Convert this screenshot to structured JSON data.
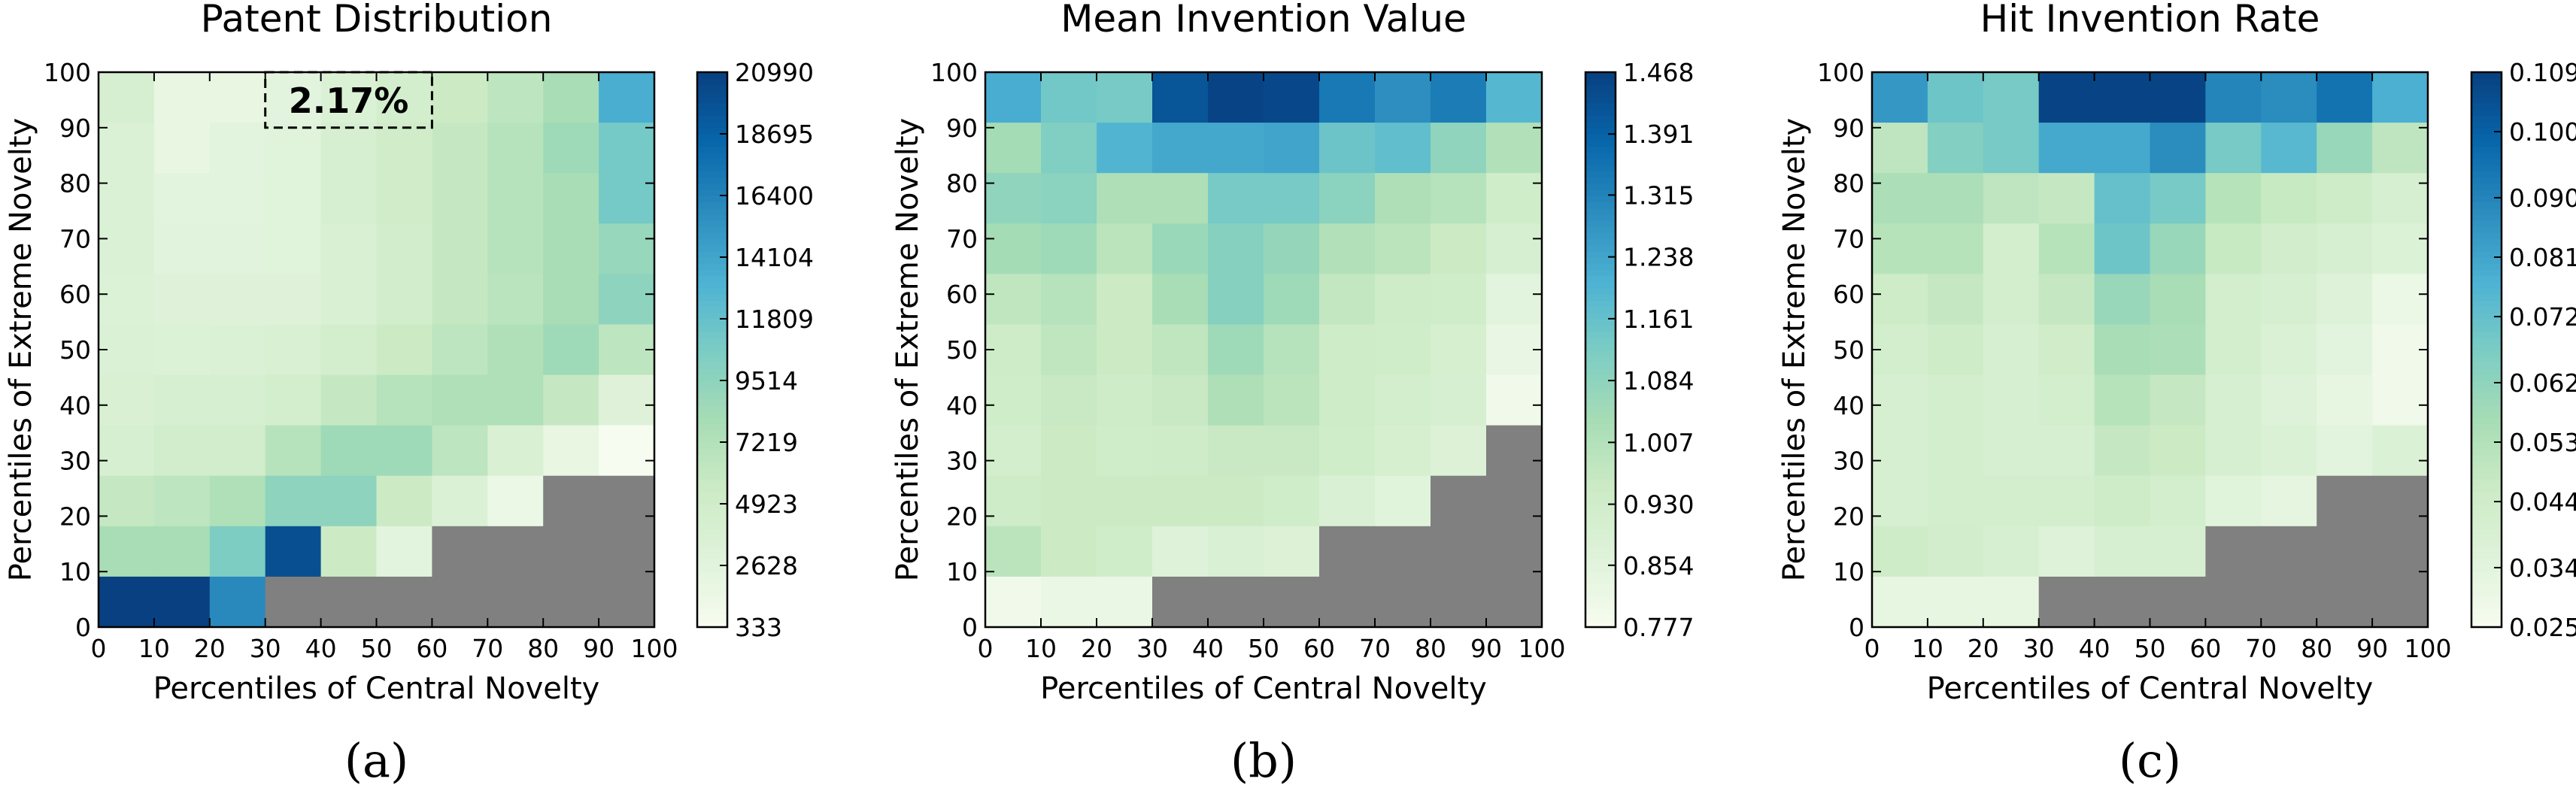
{
  "chart_data": [
    {
      "type": "heatmap",
      "caption": "(a)",
      "title": "Patent Distribution",
      "xlabel": "Percentiles of Central Novelty",
      "ylabel": "Percentiles of Extreme Novelty",
      "xlim": [
        0,
        100
      ],
      "ylim": [
        0,
        100
      ],
      "x_ticks": [
        "0",
        "10",
        "20",
        "30",
        "40",
        "50",
        "60",
        "70",
        "80",
        "90",
        "100"
      ],
      "y_ticks": [
        "0",
        "10",
        "20",
        "30",
        "40",
        "50",
        "60",
        "70",
        "80",
        "90",
        "100"
      ],
      "colorbar": {
        "min": 333,
        "max": 20990,
        "tick_values": [
          333,
          2628,
          4923,
          7219,
          9514,
          11809,
          14104,
          16400,
          18695,
          20990
        ],
        "tick_labels": [
          "333",
          "2628",
          "4923",
          "7219",
          "9514",
          "11809",
          "14104",
          "16400",
          "18695",
          "20990"
        ]
      },
      "missing_color": "#808080",
      "annotation": {
        "text": "2.17%",
        "box": {
          "x0": 30,
          "x1": 60,
          "y0": 90,
          "y1": 100
        }
      },
      "rows_top_to_bottom": [
        [
          4000,
          2000,
          2000,
          2500,
          3500,
          4500,
          5500,
          6500,
          8000,
          13500
        ],
        [
          3500,
          2000,
          2500,
          2800,
          4000,
          5000,
          6000,
          7000,
          8500,
          11000
        ],
        [
          3500,
          2500,
          2600,
          2800,
          4000,
          5000,
          6000,
          7000,
          8000,
          11000
        ],
        [
          3500,
          2700,
          2700,
          2800,
          3800,
          4700,
          6000,
          7000,
          8000,
          9000
        ],
        [
          3300,
          3000,
          3000,
          3000,
          3800,
          4700,
          6000,
          6800,
          8000,
          9500
        ],
        [
          3500,
          3300,
          3500,
          3800,
          4500,
          5500,
          6500,
          7500,
          8500,
          6500
        ],
        [
          3800,
          4000,
          4200,
          4500,
          6000,
          7000,
          7500,
          7500,
          6000,
          3000
        ],
        [
          4200,
          4800,
          4800,
          7000,
          8500,
          8500,
          6500,
          3800,
          2000,
          333
        ],
        [
          6000,
          6500,
          7500,
          9500,
          9500,
          5500,
          3500,
          1500,
          null,
          null
        ],
        [
          8000,
          8000,
          10500,
          20000,
          5500,
          2500,
          null,
          null,
          null,
          null
        ],
        [
          20990,
          20990,
          16000,
          null,
          null,
          null,
          null,
          null,
          null,
          null
        ]
      ]
    },
    {
      "type": "heatmap",
      "caption": "(b)",
      "title": "Mean Invention Value",
      "xlabel": "Percentiles of Central Novelty",
      "ylabel": "Percentiles of Extreme Novelty",
      "xlim": [
        0,
        100
      ],
      "ylim": [
        0,
        100
      ],
      "x_ticks": [
        "0",
        "10",
        "20",
        "30",
        "40",
        "50",
        "60",
        "70",
        "80",
        "90",
        "100"
      ],
      "y_ticks": [
        "0",
        "10",
        "20",
        "30",
        "40",
        "50",
        "60",
        "70",
        "80",
        "90",
        "100"
      ],
      "colorbar": {
        "min": 0.777,
        "max": 1.468,
        "tick_values": [
          0.777,
          0.854,
          0.93,
          1.007,
          1.084,
          1.161,
          1.238,
          1.315,
          1.391,
          1.468
        ],
        "tick_labels": [
          "0.777",
          "0.854",
          "0.930",
          "1.007",
          "1.084",
          "1.161",
          "1.238",
          "1.315",
          "1.391",
          "1.468"
        ]
      },
      "missing_color": "#808080",
      "rows_top_to_bottom": [
        [
          1.22,
          1.14,
          1.13,
          1.42,
          1.46,
          1.45,
          1.34,
          1.29,
          1.33,
          1.19
        ],
        [
          1.04,
          1.11,
          1.2,
          1.23,
          1.23,
          1.24,
          1.15,
          1.17,
          1.08,
          1.01
        ],
        [
          1.08,
          1.09,
          1.02,
          1.02,
          1.13,
          1.13,
          1.09,
          1.02,
          1.0,
          0.93
        ],
        [
          1.04,
          1.05,
          0.99,
          1.06,
          1.1,
          1.07,
          1.01,
          0.99,
          0.95,
          0.9
        ],
        [
          0.98,
          1.0,
          0.95,
          1.03,
          1.1,
          1.05,
          0.97,
          0.94,
          0.93,
          0.85
        ],
        [
          0.94,
          0.98,
          0.95,
          0.98,
          1.05,
          1.0,
          0.94,
          0.93,
          0.91,
          0.83
        ],
        [
          0.93,
          0.96,
          0.94,
          0.96,
          1.02,
          0.99,
          0.94,
          0.92,
          0.9,
          0.8
        ],
        [
          0.92,
          0.95,
          0.93,
          0.94,
          0.96,
          0.96,
          0.93,
          0.91,
          0.88,
          null
        ],
        [
          0.94,
          0.95,
          0.95,
          0.95,
          0.95,
          0.93,
          0.89,
          0.86,
          null,
          null
        ],
        [
          0.99,
          0.95,
          0.93,
          0.87,
          0.89,
          0.88,
          null,
          null,
          null,
          null
        ],
        [
          0.8,
          0.82,
          0.82,
          null,
          null,
          null,
          null,
          null,
          null,
          null
        ]
      ]
    },
    {
      "type": "heatmap",
      "caption": "(c)",
      "title": "Hit Invention Rate",
      "xlabel": "Percentiles of Central Novelty",
      "ylabel": "Percentiles of Extreme Novelty",
      "xlim": [
        0,
        100
      ],
      "ylim": [
        0,
        100
      ],
      "x_ticks": [
        "0",
        "10",
        "20",
        "30",
        "40",
        "50",
        "60",
        "70",
        "80",
        "90",
        "100"
      ],
      "y_ticks": [
        "0",
        "10",
        "20",
        "30",
        "40",
        "50",
        "60",
        "70",
        "80",
        "90",
        "100"
      ],
      "colorbar": {
        "min": 0.025,
        "max": 0.109,
        "tick_values": [
          0.025,
          0.034,
          0.044,
          0.053,
          0.062,
          0.072,
          0.081,
          0.09,
          0.1,
          0.109
        ],
        "tick_labels": [
          "0.025",
          "0.034",
          "0.044",
          "0.053",
          "0.062",
          "0.072",
          "0.081",
          "0.090",
          "0.100",
          "0.109"
        ]
      },
      "missing_color": "#808080",
      "rows_top_to_bottom": [
        [
          0.085,
          0.07,
          0.068,
          0.108,
          0.108,
          0.108,
          0.09,
          0.088,
          0.095,
          0.078
        ],
        [
          0.05,
          0.065,
          0.068,
          0.08,
          0.08,
          0.088,
          0.068,
          0.075,
          0.06,
          0.05
        ],
        [
          0.055,
          0.055,
          0.05,
          0.048,
          0.072,
          0.068,
          0.052,
          0.047,
          0.045,
          0.04
        ],
        [
          0.052,
          0.052,
          0.042,
          0.052,
          0.07,
          0.06,
          0.047,
          0.043,
          0.04,
          0.037
        ],
        [
          0.045,
          0.048,
          0.042,
          0.048,
          0.06,
          0.056,
          0.042,
          0.04,
          0.036,
          0.03
        ],
        [
          0.042,
          0.045,
          0.04,
          0.044,
          0.056,
          0.055,
          0.042,
          0.038,
          0.034,
          0.028
        ],
        [
          0.04,
          0.042,
          0.04,
          0.042,
          0.052,
          0.048,
          0.04,
          0.036,
          0.032,
          0.028
        ],
        [
          0.04,
          0.042,
          0.04,
          0.04,
          0.048,
          0.046,
          0.04,
          0.038,
          0.034,
          0.038
        ],
        [
          0.04,
          0.042,
          0.042,
          0.042,
          0.045,
          0.042,
          0.035,
          0.033,
          null,
          null
        ],
        [
          0.045,
          0.043,
          0.04,
          0.036,
          0.04,
          0.04,
          null,
          null,
          null,
          null
        ],
        [
          0.032,
          0.032,
          0.032,
          null,
          null,
          null,
          null,
          null,
          null,
          null
        ]
      ]
    }
  ]
}
